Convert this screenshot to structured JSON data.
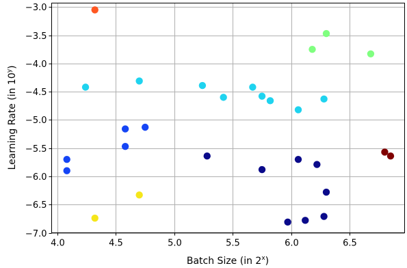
{
  "chart_data": {
    "type": "scatter",
    "title": "",
    "xlabel": "Batch Size (in 2",
    "xlabel_sup": "x",
    "xlabel_end": ")",
    "ylabel": "Learning Rate (in 10",
    "ylabel_sup": "y",
    "ylabel_end": ")",
    "xlim": [
      3.95,
      6.97
    ],
    "ylim": [
      -7.0,
      -2.93
    ],
    "xticks": [
      4.0,
      4.5,
      5.0,
      5.5,
      6.0,
      6.5
    ],
    "xtick_labels": [
      "4.0",
      "4.5",
      "5.0",
      "5.5",
      "6.0",
      "6.5"
    ],
    "yticks": [
      -7.0,
      -6.5,
      -6.0,
      -5.5,
      -5.0,
      -4.5,
      -4.0,
      -3.5,
      -3.0
    ],
    "ytick_labels": [
      "−7.0",
      "−6.5",
      "−6.0",
      "−5.5",
      "−5.0",
      "−4.5",
      "−4.0",
      "−3.5",
      "−3.0"
    ],
    "grid": true,
    "legend": "none",
    "points": [
      {
        "x": 4.32,
        "y": -3.05,
        "color": "#ff5722"
      },
      {
        "x": 6.3,
        "y": -3.47,
        "color": "#80ff80"
      },
      {
        "x": 6.18,
        "y": -3.75,
        "color": "#80ff80"
      },
      {
        "x": 6.68,
        "y": -3.83,
        "color": "#80ff80"
      },
      {
        "x": 4.7,
        "y": -4.31,
        "color": "#1fd3ef"
      },
      {
        "x": 4.24,
        "y": -4.42,
        "color": "#1fd3ef"
      },
      {
        "x": 5.24,
        "y": -4.39,
        "color": "#1fd3ef"
      },
      {
        "x": 5.67,
        "y": -4.42,
        "color": "#1fd3ef"
      },
      {
        "x": 5.42,
        "y": -4.6,
        "color": "#1fd3ef"
      },
      {
        "x": 5.75,
        "y": -4.58,
        "color": "#1fd3ef"
      },
      {
        "x": 5.82,
        "y": -4.66,
        "color": "#1fd3ef"
      },
      {
        "x": 6.28,
        "y": -4.63,
        "color": "#1fd3ef"
      },
      {
        "x": 6.06,
        "y": -4.82,
        "color": "#1fd3ef"
      },
      {
        "x": 4.58,
        "y": -5.16,
        "color": "#1545f5"
      },
      {
        "x": 4.75,
        "y": -5.13,
        "color": "#1545f5"
      },
      {
        "x": 4.58,
        "y": -5.47,
        "color": "#1545f5"
      },
      {
        "x": 4.08,
        "y": -5.7,
        "color": "#1545f5"
      },
      {
        "x": 4.08,
        "y": -5.9,
        "color": "#1545f5"
      },
      {
        "x": 5.28,
        "y": -5.64,
        "color": "#0a0a8a"
      },
      {
        "x": 6.06,
        "y": -5.7,
        "color": "#0a0a8a"
      },
      {
        "x": 6.22,
        "y": -5.79,
        "color": "#0a0a8a"
      },
      {
        "x": 5.75,
        "y": -5.88,
        "color": "#0a0a8a"
      },
      {
        "x": 6.3,
        "y": -6.28,
        "color": "#0a0a8a"
      },
      {
        "x": 5.97,
        "y": -6.81,
        "color": "#0a0a8a"
      },
      {
        "x": 6.12,
        "y": -6.78,
        "color": "#0a0a8a"
      },
      {
        "x": 6.28,
        "y": -6.71,
        "color": "#0a0a8a"
      },
      {
        "x": 6.8,
        "y": -5.57,
        "color": "#800000"
      },
      {
        "x": 6.85,
        "y": -5.64,
        "color": "#800000"
      },
      {
        "x": 4.7,
        "y": -6.33,
        "color": "#f5e61a"
      },
      {
        "x": 4.32,
        "y": -6.74,
        "color": "#f5e61a"
      }
    ]
  }
}
